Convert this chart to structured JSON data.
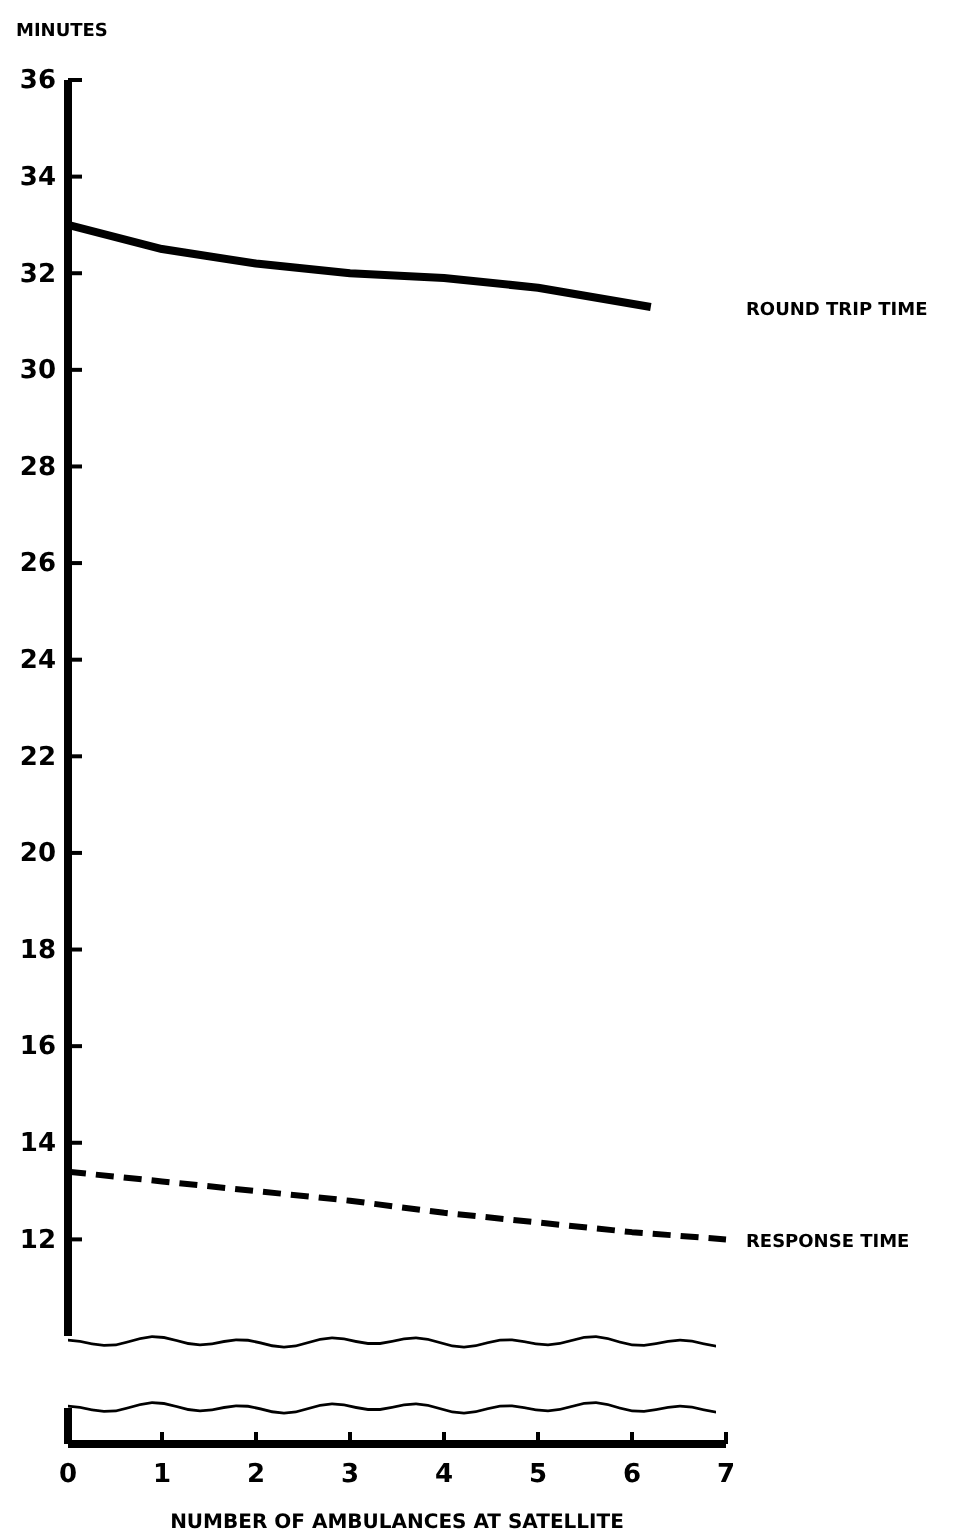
{
  "chart_data": {
    "type": "line",
    "ylabel": "MINUTES",
    "xlabel": "NUMBER OF AMBULANCES AT SATELLITE",
    "xlim": [
      0,
      7
    ],
    "xticks": [
      0,
      1,
      2,
      3,
      4,
      5,
      6,
      7
    ],
    "ylim": [
      10,
      36
    ],
    "yticks": [
      12,
      14,
      16,
      18,
      20,
      22,
      24,
      26,
      28,
      30,
      32,
      34,
      36
    ],
    "grid": false,
    "legend": false,
    "marker": "none",
    "series": [
      {
        "name": "ROUND TRIP TIME",
        "color": "#000000",
        "line_style": "solid",
        "x": [
          0,
          1,
          2,
          3,
          4,
          5,
          6.2
        ],
        "values": [
          33.0,
          32.5,
          32.2,
          32.0,
          31.9,
          31.7,
          31.3
        ]
      },
      {
        "name": "RESPONSE TIME",
        "color": "#000000",
        "line_style": "dashed",
        "x": [
          0,
          1,
          2,
          3,
          4,
          5,
          6,
          7
        ],
        "values": [
          13.4,
          13.2,
          13.0,
          12.8,
          12.55,
          12.35,
          12.15,
          12.0
        ]
      }
    ]
  }
}
